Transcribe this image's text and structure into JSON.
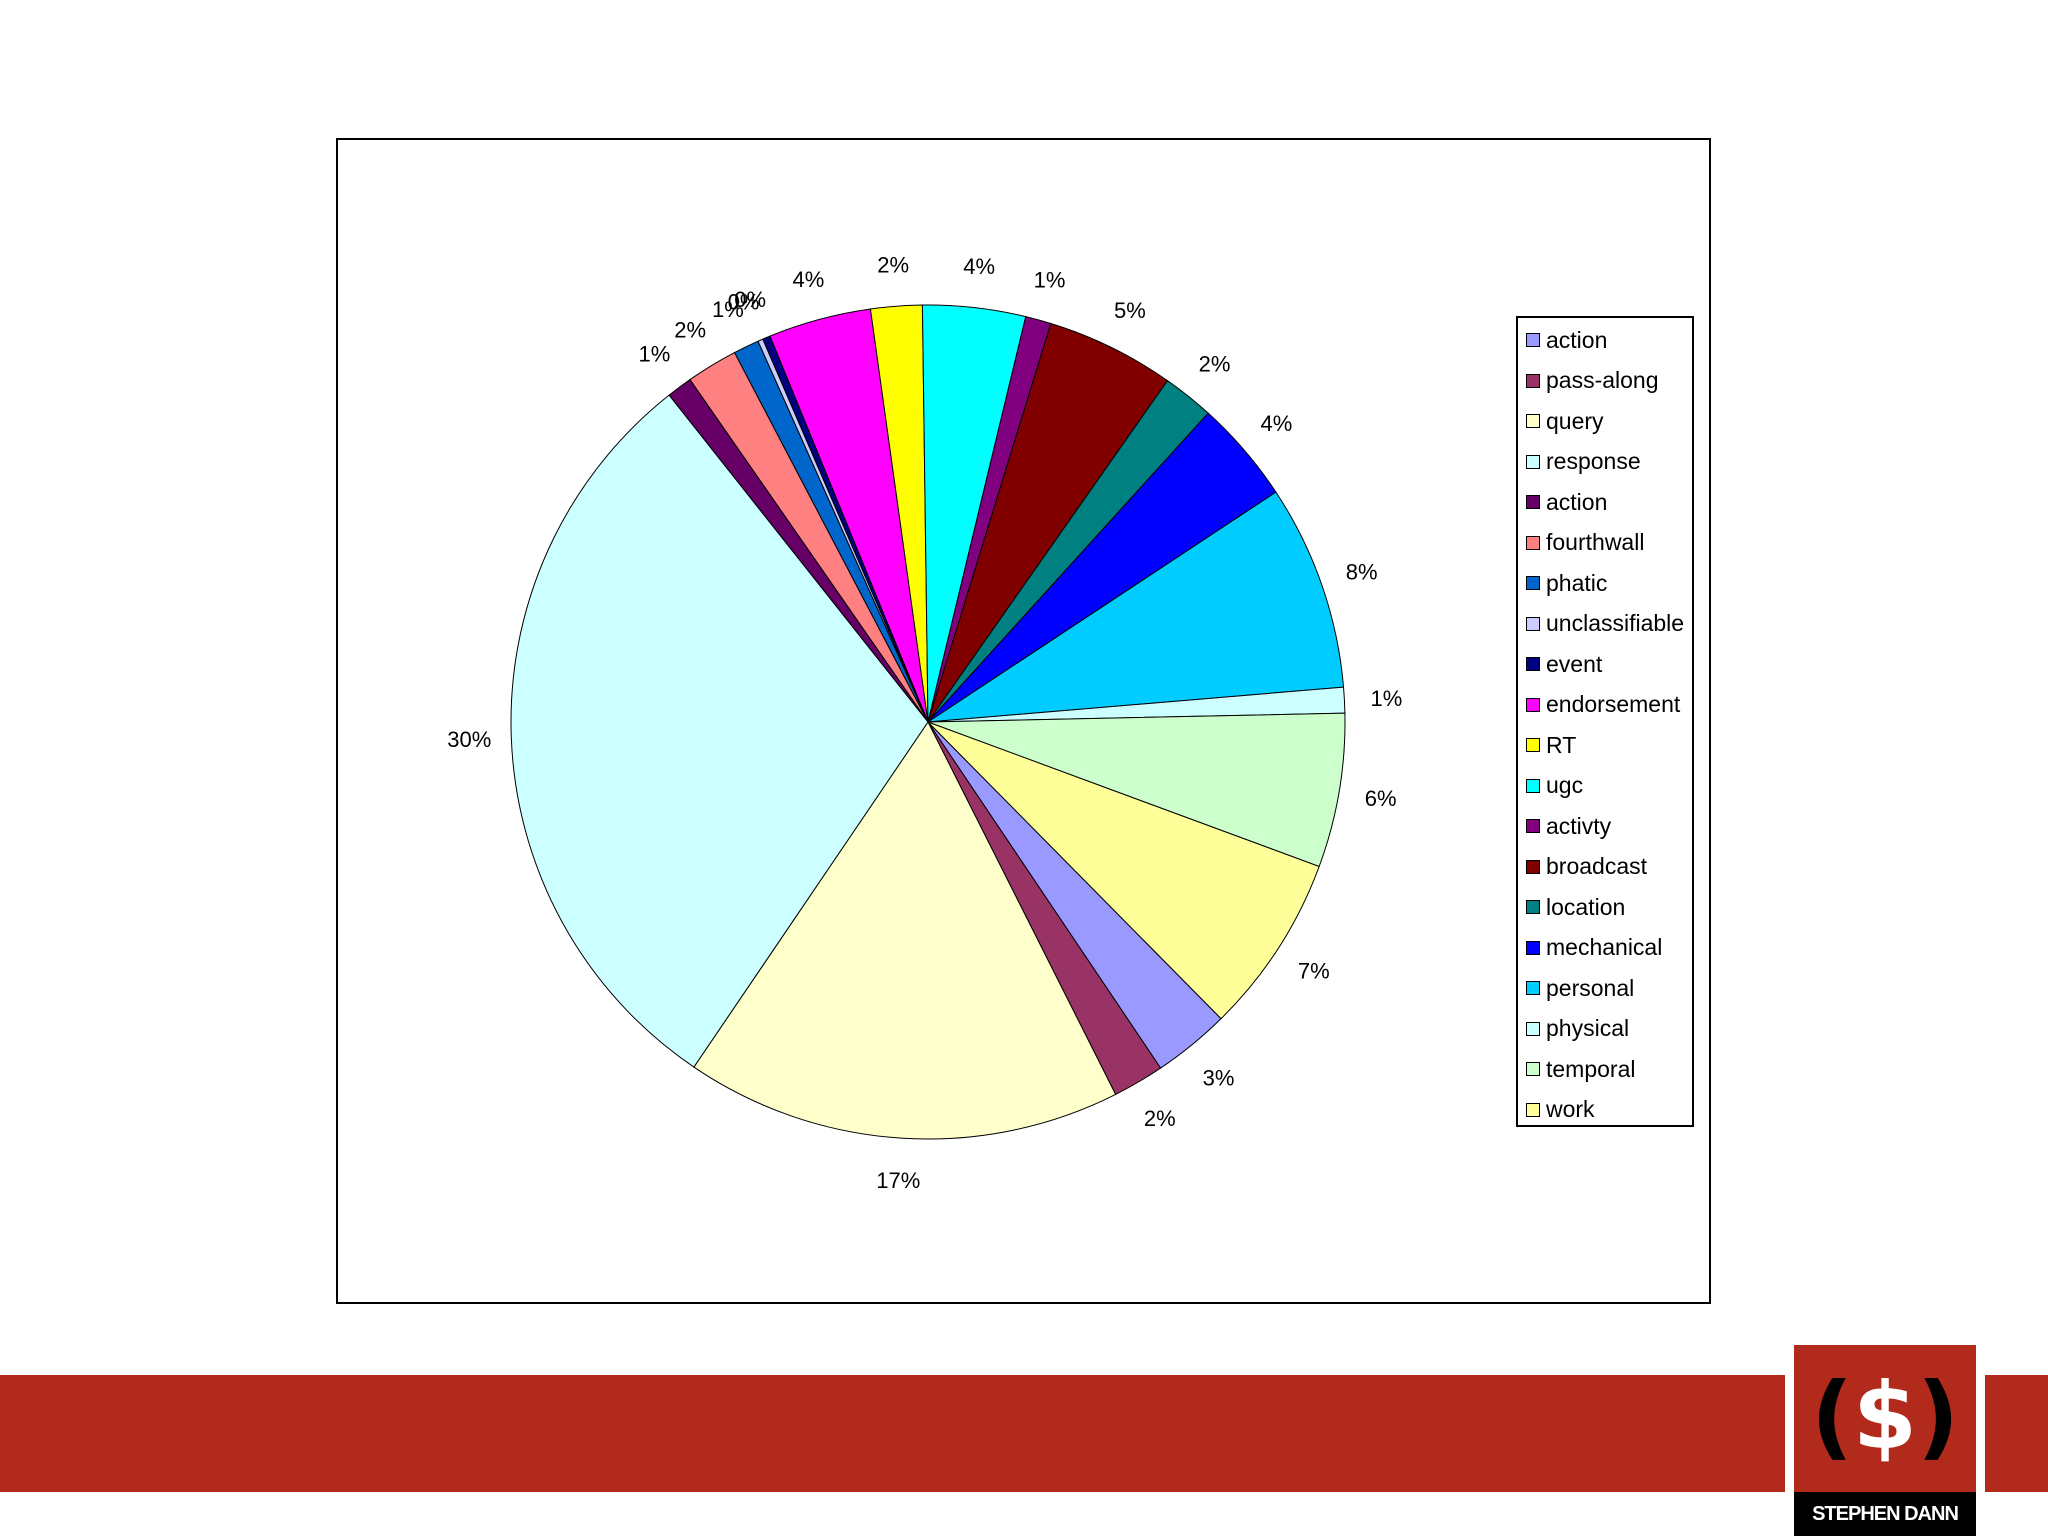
{
  "chart_data": {
    "type": "pie",
    "title": "",
    "legend_position": "right",
    "slices": [
      {
        "label": "action",
        "value": 3,
        "data_label": "3%",
        "color": "#9999ff"
      },
      {
        "label": "pass-along",
        "value": 2,
        "data_label": "2%",
        "color": "#993366"
      },
      {
        "label": "query",
        "value": 17,
        "data_label": "17%",
        "color": "#ffffcc"
      },
      {
        "label": "response",
        "value": 30,
        "data_label": "30%",
        "color": "#ccffff"
      },
      {
        "label": "action",
        "value": 1,
        "data_label": "1%",
        "color": "#660066"
      },
      {
        "label": "fourthwall",
        "value": 2,
        "data_label": "2%",
        "color": "#ff8080"
      },
      {
        "label": "phatic",
        "value": 1,
        "data_label": "1%",
        "color": "#0066cc"
      },
      {
        "label": "unclassifiable",
        "value": 0.2,
        "data_label": "0%",
        "color": "#ccccff"
      },
      {
        "label": "event",
        "value": 0.3,
        "data_label": "0%",
        "color": "#000080"
      },
      {
        "label": "endorsement",
        "value": 4,
        "data_label": "4%",
        "color": "#ff00ff"
      },
      {
        "label": "RT",
        "value": 2,
        "data_label": "2%",
        "color": "#ffff00"
      },
      {
        "label": "ugc",
        "value": 4,
        "data_label": "4%",
        "color": "#00ffff"
      },
      {
        "label": "activty",
        "value": 1,
        "data_label": "1%",
        "color": "#800080"
      },
      {
        "label": "broadcast",
        "value": 5,
        "data_label": "5%",
        "color": "#800000"
      },
      {
        "label": "location",
        "value": 2,
        "data_label": "2%",
        "color": "#008080"
      },
      {
        "label": "mechanical",
        "value": 4,
        "data_label": "4%",
        "color": "#0000ff"
      },
      {
        "label": "personal",
        "value": 8,
        "data_label": "8%",
        "color": "#00ccff"
      },
      {
        "label": "physical",
        "value": 1,
        "data_label": "1%",
        "color": "#ccffff"
      },
      {
        "label": "temporal",
        "value": 6,
        "data_label": "6%",
        "color": "#ccffcc"
      },
      {
        "label": "work",
        "value": 7,
        "data_label": "7%",
        "color": "#ffff99"
      }
    ]
  },
  "logo": {
    "mark_open": "(",
    "mark_symbol": "$",
    "mark_close": ")",
    "name": "STEPHEN DANN"
  }
}
